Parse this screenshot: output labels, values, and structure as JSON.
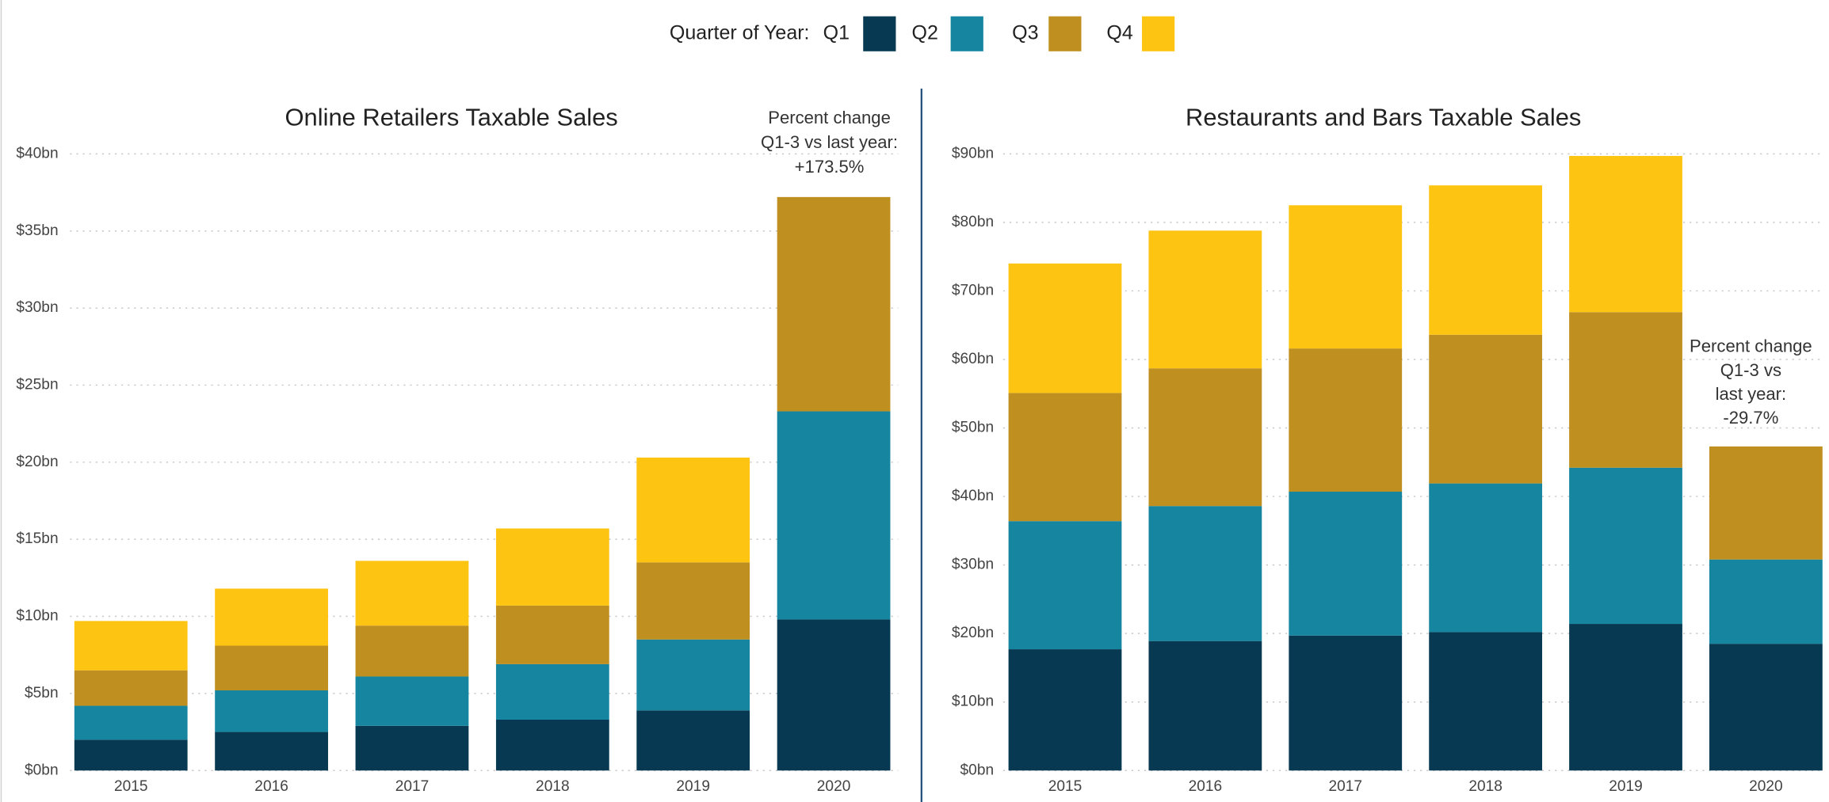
{
  "legend_title": "Quarter of Year:",
  "chart_data": [
    {
      "type": "stacked_bar",
      "title": "Online Retailers Taxable Sales",
      "annotation": [
        "Percent change",
        "Q1-3 vs last year:",
        "+173.5%"
      ],
      "categories": [
        "2015",
        "2016",
        "2017",
        "2018",
        "2019",
        "2020"
      ],
      "series": [
        {
          "name": "Q1",
          "color": "#073a52",
          "values": [
            2.0,
            2.5,
            2.9,
            3.3,
            3.9,
            9.8
          ]
        },
        {
          "name": "Q2",
          "color": "#1686a0",
          "values": [
            2.2,
            2.7,
            3.2,
            3.6,
            4.6,
            13.5
          ]
        },
        {
          "name": "Q3",
          "color": "#bf8f1f",
          "values": [
            2.3,
            2.9,
            3.3,
            3.8,
            5.0,
            13.9
          ]
        },
        {
          "name": "Q4",
          "color": "#fdc412",
          "values": [
            3.2,
            3.7,
            4.2,
            5.0,
            6.8,
            null
          ]
        }
      ],
      "ylim": [
        0,
        40
      ],
      "yticks": [
        {
          "value": 0,
          "label": "$0bn"
        },
        {
          "value": 5,
          "label": "$5bn"
        },
        {
          "value": 10,
          "label": "$10bn"
        },
        {
          "value": 15,
          "label": "$15bn"
        },
        {
          "value": 20,
          "label": "$20bn"
        },
        {
          "value": 25,
          "label": "$25bn"
        },
        {
          "value": 30,
          "label": "$30bn"
        },
        {
          "value": 35,
          "label": "$35bn"
        },
        {
          "value": 40,
          "label": "$40bn"
        }
      ],
      "grid": true
    },
    {
      "type": "stacked_bar",
      "title": "Restaurants and Bars Taxable Sales",
      "annotation": [
        "Percent change",
        "Q1-3 vs",
        "last year:",
        "-29.7%"
      ],
      "categories": [
        "2015",
        "2016",
        "2017",
        "2018",
        "2019",
        "2020"
      ],
      "series": [
        {
          "color": "#073a52",
          "values": [
            17.7,
            18.9,
            19.7,
            20.2,
            21.4,
            18.5
          ]
        },
        {
          "color": "#1686a0",
          "values": [
            18.7,
            19.7,
            21.0,
            21.7,
            22.8,
            12.3
          ]
        },
        {
          "color": "#bf8f1f",
          "values": [
            18.7,
            20.1,
            20.9,
            21.7,
            22.7,
            16.5
          ]
        },
        {
          "color": "#fdc412",
          "values": [
            18.9,
            20.1,
            20.9,
            21.8,
            22.8,
            null
          ]
        }
      ],
      "ylim": [
        0,
        90
      ],
      "yticks": [
        {
          "value": 0,
          "label": "$0bn"
        },
        {
          "value": 10,
          "label": "$10bn"
        },
        {
          "value": 20,
          "label": "$20bn"
        },
        {
          "value": 30,
          "label": "$30bn"
        },
        {
          "value": 40,
          "label": "$40bn"
        },
        {
          "value": 50,
          "label": "$50bn"
        },
        {
          "value": 60,
          "label": "$60bn"
        },
        {
          "value": 70,
          "label": "$70bn"
        },
        {
          "value": 80,
          "label": "$80bn"
        },
        {
          "value": 90,
          "label": "$90bn"
        }
      ],
      "grid": true
    }
  ]
}
